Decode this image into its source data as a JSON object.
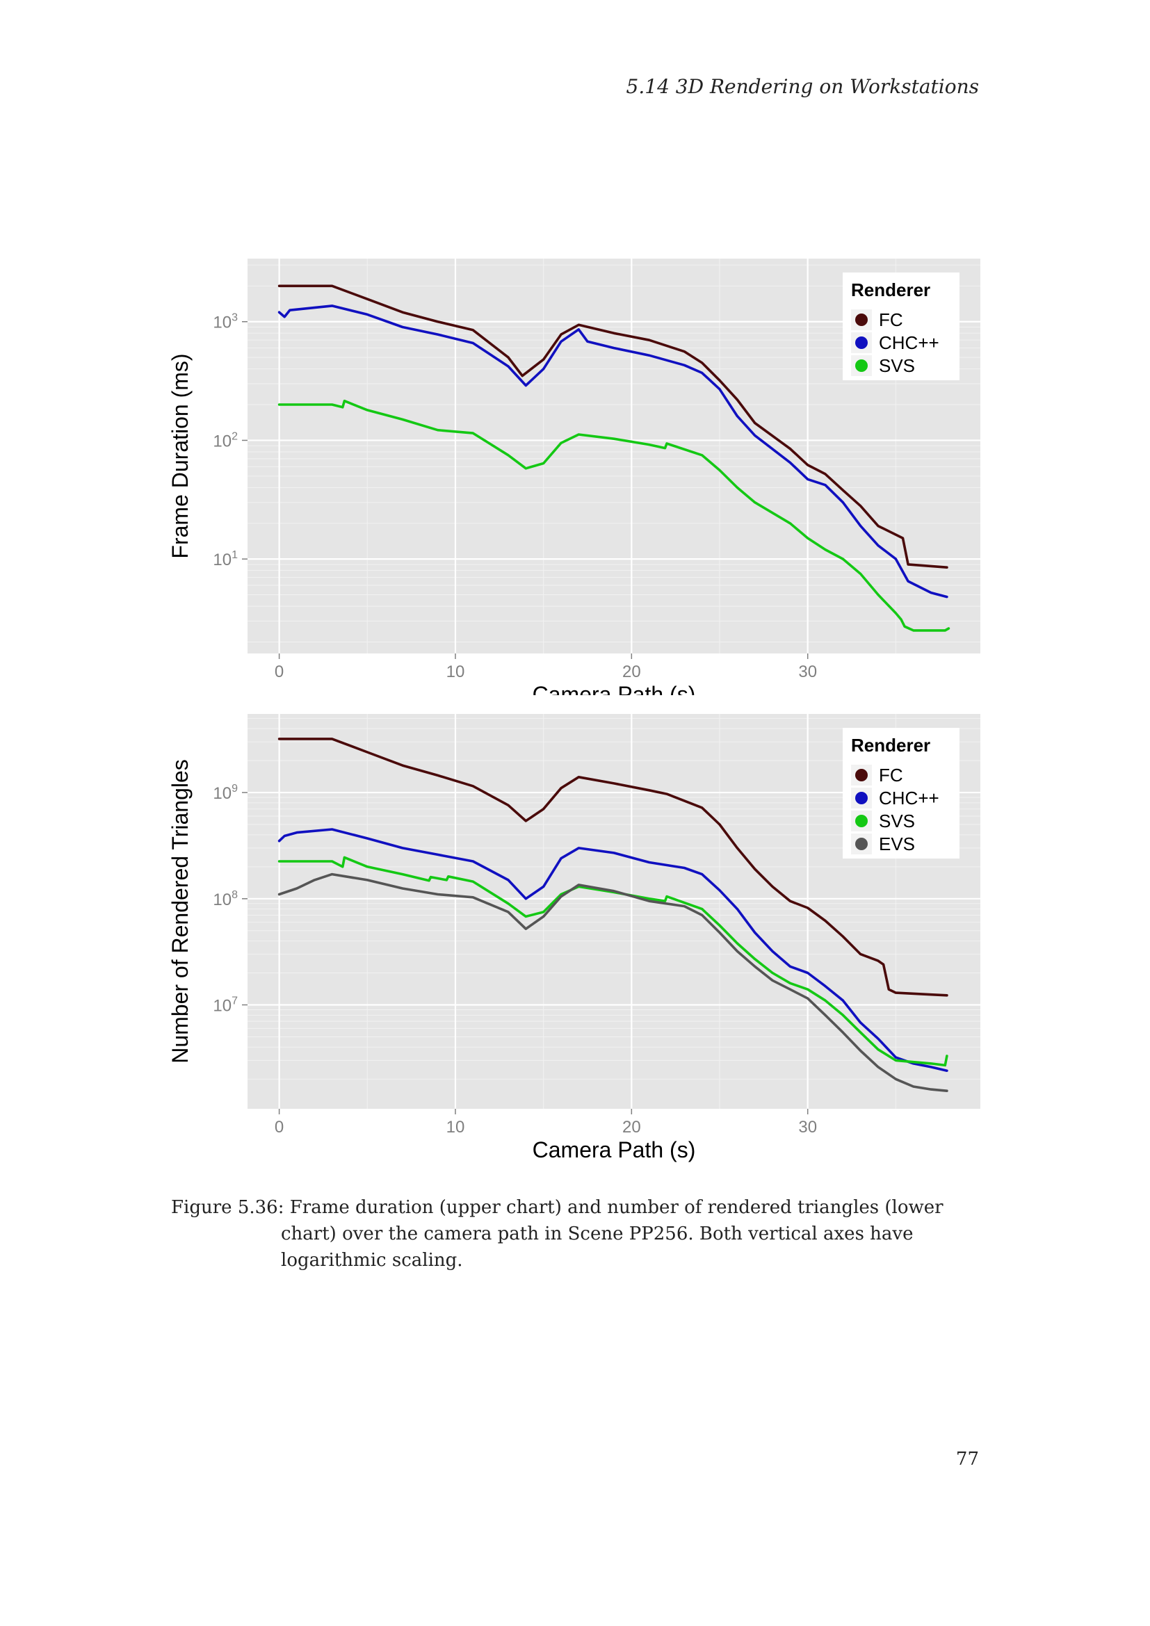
{
  "header": {
    "running_title": "5.14  3D Rendering on Workstations"
  },
  "caption": "Figure 5.36: Frame duration (upper chart) and number of rendered triangles (lower chart) over the camera path in Scene PP256. Both vertical axes have logarithmic scaling.",
  "page_number": "77",
  "colors": {
    "FC": "#4a0a0a",
    "CHC++": "#1010c0",
    "SVS": "#14c814",
    "EVS": "#555555",
    "panel": "#e5e5e5",
    "grid": "#ffffff"
  },
  "chart_data": [
    {
      "type": "line",
      "xlabel": "Camera Path (s)",
      "ylabel": "Frame Duration (ms)",
      "xlim": [
        -1.8,
        39.8
      ],
      "x_ticks": [
        "0",
        "10",
        "20",
        "30"
      ],
      "x_tick_values": [
        0,
        10,
        20,
        30
      ],
      "yscale": "log",
      "ylim": [
        1.6,
        3400
      ],
      "y_ticks": [
        {
          "base": "10",
          "exp": "1",
          "value": 10
        },
        {
          "base": "10",
          "exp": "2",
          "value": 100
        },
        {
          "base": "10",
          "exp": "3",
          "value": 1000
        }
      ],
      "legend": {
        "title": "Renderer",
        "placement": "top-right"
      },
      "series": [
        {
          "name": "FC",
          "points": [
            [
              0,
              2000
            ],
            [
              3,
              2000
            ],
            [
              5,
              1550
            ],
            [
              7,
              1200
            ],
            [
              9,
              1000
            ],
            [
              11,
              850
            ],
            [
              13,
              500
            ],
            [
              13.8,
              350
            ],
            [
              15,
              480
            ],
            [
              16,
              780
            ],
            [
              17,
              940
            ],
            [
              19,
              800
            ],
            [
              21,
              700
            ],
            [
              23,
              560
            ],
            [
              24,
              450
            ],
            [
              25,
              320
            ],
            [
              26,
              220
            ],
            [
              27,
              140
            ],
            [
              29,
              85
            ],
            [
              30,
              62
            ],
            [
              31,
              52
            ],
            [
              32,
              38
            ],
            [
              33,
              28
            ],
            [
              34,
              19
            ],
            [
              35.4,
              15
            ],
            [
              35.7,
              9
            ],
            [
              37.9,
              8.5
            ]
          ]
        },
        {
          "name": "CHC++",
          "points": [
            [
              0,
              1200
            ],
            [
              0.3,
              1100
            ],
            [
              0.6,
              1250
            ],
            [
              3,
              1360
            ],
            [
              5,
              1150
            ],
            [
              7,
              900
            ],
            [
              9,
              780
            ],
            [
              11,
              660
            ],
            [
              13,
              420
            ],
            [
              14,
              290
            ],
            [
              15,
              400
            ],
            [
              16,
              680
            ],
            [
              17,
              860
            ],
            [
              17.5,
              680
            ],
            [
              19,
              600
            ],
            [
              21,
              520
            ],
            [
              23,
              430
            ],
            [
              24,
              370
            ],
            [
              25,
              270
            ],
            [
              26,
              160
            ],
            [
              27,
              110
            ],
            [
              29,
              65
            ],
            [
              30,
              47
            ],
            [
              31,
              42
            ],
            [
              32,
              30
            ],
            [
              33,
              19
            ],
            [
              34,
              13
            ],
            [
              35,
              10
            ],
            [
              35.7,
              6.5
            ],
            [
              37,
              5.2
            ],
            [
              37.9,
              4.8
            ]
          ]
        },
        {
          "name": "SVS",
          "points": [
            [
              0,
              200
            ],
            [
              3,
              200
            ],
            [
              3.6,
              190
            ],
            [
              3.7,
              215
            ],
            [
              5,
              180
            ],
            [
              7,
              150
            ],
            [
              9,
              122
            ],
            [
              11,
              115
            ],
            [
              13,
              75
            ],
            [
              14,
              58
            ],
            [
              15,
              64
            ],
            [
              16,
              95
            ],
            [
              17,
              112
            ],
            [
              19,
              103
            ],
            [
              21,
              92
            ],
            [
              21.9,
              86
            ],
            [
              22,
              94
            ],
            [
              24,
              75
            ],
            [
              25,
              56
            ],
            [
              26,
              40
            ],
            [
              27,
              30
            ],
            [
              29,
              20
            ],
            [
              30,
              15
            ],
            [
              31,
              12
            ],
            [
              32,
              10
            ],
            [
              33,
              7.5
            ],
            [
              34,
              5
            ],
            [
              35,
              3.5
            ],
            [
              35.3,
              3.1
            ],
            [
              35.5,
              2.7
            ],
            [
              36,
              2.5
            ],
            [
              37.8,
              2.5
            ],
            [
              38,
              2.6
            ]
          ]
        }
      ]
    },
    {
      "type": "line",
      "xlabel": "Camera Path (s)",
      "ylabel": "Number of Rendered Triangles",
      "xlim": [
        -1.8,
        39.8
      ],
      "x_ticks": [
        "0",
        "10",
        "20",
        "30"
      ],
      "x_tick_values": [
        0,
        10,
        20,
        30
      ],
      "yscale": "log",
      "ylim": [
        1050000,
        5500000000
      ],
      "y_ticks": [
        {
          "base": "10",
          "exp": "7",
          "value": 10000000
        },
        {
          "base": "10",
          "exp": "8",
          "value": 100000000
        },
        {
          "base": "10",
          "exp": "9",
          "value": 1000000000
        }
      ],
      "legend": {
        "title": "Renderer",
        "placement": "top-right"
      },
      "series": [
        {
          "name": "FC",
          "points": [
            [
              0,
              3200000000
            ],
            [
              3,
              3200000000
            ],
            [
              5,
              2400000000
            ],
            [
              7,
              1800000000
            ],
            [
              9,
              1450000000
            ],
            [
              11,
              1150000000
            ],
            [
              13,
              760000000
            ],
            [
              14,
              540000000
            ],
            [
              15,
              700000000
            ],
            [
              16,
              1100000000
            ],
            [
              17,
              1400000000
            ],
            [
              19,
              1220000000
            ],
            [
              21,
              1050000000
            ],
            [
              22,
              970000000
            ],
            [
              24,
              720000000
            ],
            [
              25,
              500000000
            ],
            [
              26,
              300000000
            ],
            [
              27,
              190000000
            ],
            [
              28,
              130000000
            ],
            [
              29,
              95000000
            ],
            [
              30,
              82000000
            ],
            [
              31,
              62000000
            ],
            [
              32,
              44000000
            ],
            [
              33,
              30000000
            ],
            [
              34,
              26000000
            ],
            [
              34.3,
              24000000
            ],
            [
              34.6,
              14000000
            ],
            [
              35,
              13000000
            ],
            [
              37,
              12500000
            ],
            [
              37.9,
              12300000
            ]
          ]
        },
        {
          "name": "CHC++",
          "points": [
            [
              0,
              350000000
            ],
            [
              0.3,
              390000000
            ],
            [
              1,
              420000000
            ],
            [
              3,
              450000000
            ],
            [
              5,
              370000000
            ],
            [
              7,
              300000000
            ],
            [
              9,
              260000000
            ],
            [
              11,
              225000000
            ],
            [
              13,
              150000000
            ],
            [
              14,
              100000000
            ],
            [
              15,
              130000000
            ],
            [
              16,
              240000000
            ],
            [
              17,
              300000000
            ],
            [
              19,
              270000000
            ],
            [
              21,
              220000000
            ],
            [
              23,
              195000000
            ],
            [
              24,
              170000000
            ],
            [
              25,
              120000000
            ],
            [
              26,
              80000000
            ],
            [
              27,
              48000000
            ],
            [
              28,
              32000000
            ],
            [
              29,
              23000000
            ],
            [
              30,
              20000000
            ],
            [
              31,
              15000000
            ],
            [
              32,
              11000000
            ],
            [
              33,
              6800000
            ],
            [
              34,
              4800000
            ],
            [
              35,
              3200000
            ],
            [
              36,
              2800000
            ],
            [
              37,
              2600000
            ],
            [
              37.9,
              2400000
            ]
          ]
        },
        {
          "name": "SVS",
          "points": [
            [
              0,
              225000000
            ],
            [
              3,
              225000000
            ],
            [
              3.6,
              200000000
            ],
            [
              3.7,
              245000000
            ],
            [
              5,
              200000000
            ],
            [
              7,
              170000000
            ],
            [
              8.5,
              148000000
            ],
            [
              8.6,
              160000000
            ],
            [
              9.5,
              150000000
            ],
            [
              9.6,
              162000000
            ],
            [
              11,
              145000000
            ],
            [
              13,
              90000000
            ],
            [
              14,
              68000000
            ],
            [
              15,
              75000000
            ],
            [
              16,
              110000000
            ],
            [
              17,
              130000000
            ],
            [
              19,
              115000000
            ],
            [
              21,
              100000000
            ],
            [
              21.9,
              95000000
            ],
            [
              22,
              105000000
            ],
            [
              24,
              80000000
            ],
            [
              25,
              56000000
            ],
            [
              26,
              38000000
            ],
            [
              27,
              27000000
            ],
            [
              28,
              20000000
            ],
            [
              29,
              16000000
            ],
            [
              30,
              14000000
            ],
            [
              31,
              11000000
            ],
            [
              32,
              8000000
            ],
            [
              33,
              5500000
            ],
            [
              34,
              3800000
            ],
            [
              35,
              3000000
            ],
            [
              37,
              2800000
            ],
            [
              37.8,
              2700000
            ],
            [
              37.9,
              3300000
            ]
          ]
        },
        {
          "name": "EVS",
          "points": [
            [
              0,
              110000000
            ],
            [
              1,
              125000000
            ],
            [
              2,
              150000000
            ],
            [
              3,
              170000000
            ],
            [
              5,
              150000000
            ],
            [
              7,
              125000000
            ],
            [
              9,
              110000000
            ],
            [
              11,
              103000000
            ],
            [
              13,
              75000000
            ],
            [
              14,
              52000000
            ],
            [
              15,
              68000000
            ],
            [
              16,
              105000000
            ],
            [
              17,
              135000000
            ],
            [
              19,
              118000000
            ],
            [
              21,
              95000000
            ],
            [
              23,
              85000000
            ],
            [
              24,
              70000000
            ],
            [
              25,
              48000000
            ],
            [
              26,
              32000000
            ],
            [
              27,
              23000000
            ],
            [
              28,
              17000000
            ],
            [
              29,
              14000000
            ],
            [
              30,
              11500000
            ],
            [
              31,
              8000000
            ],
            [
              32,
              5500000
            ],
            [
              33,
              3700000
            ],
            [
              34,
              2600000
            ],
            [
              35,
              2000000
            ],
            [
              36,
              1700000
            ],
            [
              37,
              1600000
            ],
            [
              37.9,
              1550000
            ]
          ]
        }
      ]
    }
  ]
}
